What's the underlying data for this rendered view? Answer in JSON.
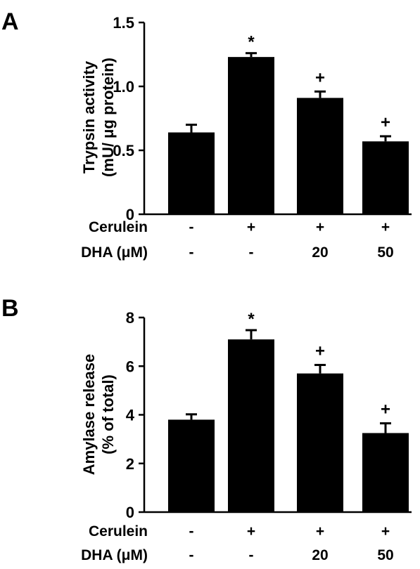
{
  "chart_data": [
    {
      "type": "bar",
      "panel_label": "A",
      "ylabel": "Trypsin activity\n(mU/ μg protein)",
      "ylim": [
        0,
        1.5
      ],
      "yticks": [
        "0",
        "0.5",
        "1.0",
        "1.5"
      ],
      "ytick_values": [
        0,
        0.5,
        1.0,
        1.5
      ],
      "categories": [
        "1",
        "2",
        "3",
        "4"
      ],
      "values": [
        0.64,
        1.23,
        0.91,
        0.57
      ],
      "errors": [
        0.06,
        0.03,
        0.05,
        0.04
      ],
      "significance": [
        "",
        "*",
        "+",
        "+"
      ],
      "condition_rows": [
        {
          "label": "Cerulein",
          "values": [
            "-",
            "+",
            "+",
            "+"
          ]
        },
        {
          "label": "DHA (μM)",
          "values": [
            "-",
            "-",
            "20",
            "50"
          ]
        }
      ],
      "bar_color": "#000000"
    },
    {
      "type": "bar",
      "panel_label": "B",
      "ylabel": "Amylase release\n(% of total)",
      "ylim": [
        0,
        8
      ],
      "yticks": [
        "0",
        "2",
        "4",
        "6",
        "8"
      ],
      "ytick_values": [
        0,
        2,
        4,
        6,
        8
      ],
      "categories": [
        "1",
        "2",
        "3",
        "4"
      ],
      "values": [
        3.8,
        7.1,
        5.7,
        3.25
      ],
      "errors": [
        0.22,
        0.38,
        0.35,
        0.4
      ],
      "significance": [
        "",
        "*",
        "+",
        "+"
      ],
      "condition_rows": [
        {
          "label": "Cerulein",
          "values": [
            "-",
            "+",
            "+",
            "+"
          ]
        },
        {
          "label": "DHA (μM)",
          "values": [
            "-",
            "-",
            "20",
            "50"
          ]
        }
      ],
      "bar_color": "#000000"
    }
  ]
}
